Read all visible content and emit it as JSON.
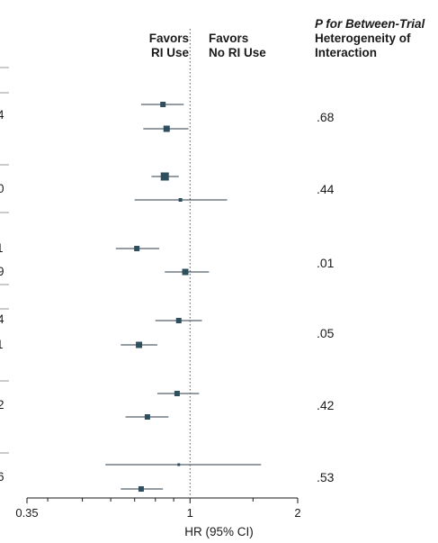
{
  "header": {
    "favors_left": [
      "Favors",
      "RI Use"
    ],
    "favors_right": [
      "Favors",
      "No RI Use"
    ],
    "p_header": [
      "P for Between-Trial",
      "Heterogeneity of",
      "Interaction"
    ]
  },
  "chart_data": {
    "type": "forest",
    "xlabel": "HR (95% CI)",
    "xscale": "log",
    "xlim": [
      0.35,
      2
    ],
    "xticks": [
      0.35,
      1,
      2
    ],
    "xtick_labels": [
      "0.35",
      "1",
      "2"
    ],
    "reference_line": 1,
    "rows": [
      {
        "hr": 0.84,
        "lo": 0.73,
        "hi": 0.96
      },
      {
        "hr": 0.86,
        "lo": 0.74,
        "hi": 0.99
      },
      {
        "hr": 0.85,
        "lo": 0.78,
        "hi": 0.93
      },
      {
        "hr": 0.94,
        "lo": 0.7,
        "hi": 1.27
      },
      {
        "hr": 0.71,
        "lo": 0.62,
        "hi": 0.82
      },
      {
        "hr": 0.97,
        "lo": 0.85,
        "hi": 1.13
      },
      {
        "hr": 0.93,
        "lo": 0.8,
        "hi": 1.08
      },
      {
        "hr": 0.72,
        "lo": 0.64,
        "hi": 0.81
      },
      {
        "hr": 0.92,
        "lo": 0.81,
        "hi": 1.06
      },
      {
        "hr": 0.76,
        "lo": 0.66,
        "hi": 0.87
      },
      {
        "hr": 0.93,
        "lo": 0.58,
        "hi": 1.58
      },
      {
        "hr": 0.73,
        "lo": 0.64,
        "hi": 0.84
      }
    ],
    "p_values": [
      ".68",
      ".44",
      ".01",
      ".05",
      ".42",
      ".53"
    ],
    "cut_labels": [
      "4",
      "0",
      "1",
      "9",
      "4",
      "1",
      "2",
      "6"
    ]
  }
}
